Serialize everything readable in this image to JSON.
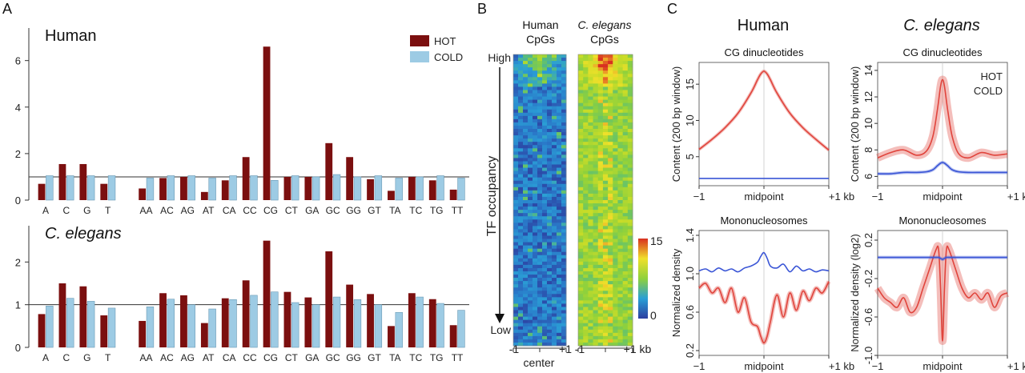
{
  "panel_labels": {
    "a": "A",
    "b": "B",
    "c": "C"
  },
  "colors": {
    "hot": "#7b0f0f",
    "cold": "#9dcbe4",
    "red_line": "#e0443c",
    "blue_line": "#3a55d6"
  },
  "chart_data": [
    {
      "id": "A-human",
      "type": "bar",
      "title": "Human",
      "categories": [
        "A",
        "C",
        "G",
        "T",
        "AA",
        "AC",
        "AG",
        "AT",
        "CA",
        "CC",
        "CG",
        "CT",
        "GA",
        "GC",
        "GG",
        "GT",
        "TA",
        "TC",
        "TG",
        "TT"
      ],
      "series": [
        {
          "name": "HOT",
          "values": [
            0.7,
            1.55,
            1.55,
            0.7,
            0.5,
            0.95,
            1.0,
            0.35,
            0.85,
            1.85,
            6.6,
            1.0,
            1.0,
            2.45,
            1.85,
            0.9,
            0.4,
            1.0,
            0.85,
            0.45
          ]
        },
        {
          "name": "COLD",
          "values": [
            1.05,
            1.05,
            1.05,
            1.05,
            0.95,
            1.05,
            1.05,
            0.95,
            1.05,
            1.05,
            0.85,
            1.05,
            1.0,
            1.1,
            1.0,
            1.05,
            0.95,
            1.0,
            1.05,
            0.95
          ]
        }
      ],
      "legend": [
        "HOT",
        "COLD"
      ],
      "yticks": [
        "0",
        "2",
        "4",
        "6"
      ],
      "ylim": [
        0,
        7.4
      ],
      "reference_line": 1
    },
    {
      "id": "A-celegans",
      "type": "bar",
      "title": "C. elegans",
      "categories": [
        "A",
        "C",
        "G",
        "T",
        "AA",
        "AC",
        "AG",
        "AT",
        "CA",
        "CC",
        "CG",
        "CT",
        "GA",
        "GC",
        "GG",
        "GT",
        "TA",
        "TC",
        "TG",
        "TT"
      ],
      "series": [
        {
          "name": "HOT",
          "values": [
            0.78,
            1.5,
            1.43,
            0.75,
            0.62,
            1.27,
            1.22,
            0.57,
            1.15,
            1.57,
            2.5,
            1.3,
            1.17,
            2.25,
            1.47,
            1.25,
            0.5,
            1.27,
            1.13,
            0.52
          ]
        },
        {
          "name": "COLD",
          "values": [
            0.97,
            1.15,
            1.08,
            0.92,
            0.95,
            1.13,
            1.0,
            0.9,
            1.12,
            1.22,
            1.3,
            1.05,
            1.0,
            1.18,
            1.12,
            1.0,
            0.82,
            1.18,
            1.03,
            0.87
          ]
        }
      ],
      "yticks": [
        "0",
        "1",
        "2"
      ],
      "ylim": [
        0,
        2.85
      ],
      "reference_line": 1
    },
    {
      "id": "B-heatmap",
      "type": "heatmap",
      "columns": [
        "Human CpGs",
        "C. elegans CpGs"
      ],
      "col_titles": [
        [
          "Human",
          "CpGs"
        ],
        [
          "C. elegans",
          "CpGs"
        ]
      ],
      "ylabel": "TF occupancy",
      "y_high": "High",
      "y_low": "Low",
      "x_left": "-1",
      "x_mid": "center",
      "x_right": "+1",
      "x_right2": "+1 kb",
      "colorbar_range": [
        0,
        15
      ],
      "colorbar_ticks": [
        "15",
        "0"
      ]
    },
    {
      "id": "C-human-cg",
      "type": "line",
      "column_title": "Human",
      "title": "CG dinucleotides",
      "ylabel": "Content (200 bp window)",
      "x": [
        -1,
        -0.8,
        -0.6,
        -0.4,
        -0.2,
        -0.1,
        -0.05,
        0,
        0.05,
        0.1,
        0.2,
        0.4,
        0.6,
        0.8,
        1
      ],
      "series": [
        {
          "name": "HOT",
          "values": [
            6.0,
            7.4,
            9.0,
            11.0,
            13.8,
            15.6,
            16.4,
            16.8,
            16.4,
            15.6,
            13.8,
            11.0,
            9.0,
            7.4,
            5.9
          ]
        },
        {
          "name": "COLD",
          "values": [
            2.0,
            2.0,
            2.0,
            2.0,
            2.0,
            2.0,
            2.0,
            2.0,
            2.0,
            2.0,
            2.0,
            2.0,
            2.0,
            2.0,
            2.0
          ]
        }
      ],
      "ylim": [
        1,
        18
      ],
      "yticks": [
        5,
        10,
        15
      ],
      "xticks": [
        "−1",
        "midpoint",
        "+1 kb"
      ]
    },
    {
      "id": "C-celegans-cg",
      "type": "line",
      "column_title": "C. elegans",
      "title": "CG dinucleotides",
      "ylabel": "Content (200 bp window)",
      "legend": [
        "HOT",
        "COLD"
      ],
      "x": [
        -1,
        -0.8,
        -0.6,
        -0.4,
        -0.25,
        -0.15,
        -0.08,
        -0.03,
        0,
        0.03,
        0.08,
        0.15,
        0.25,
        0.4,
        0.6,
        0.8,
        1
      ],
      "series": [
        {
          "name": "HOT",
          "values": [
            7.4,
            7.8,
            8.0,
            7.6,
            7.9,
            9.0,
            11.0,
            12.8,
            13.3,
            12.8,
            11.0,
            9.0,
            7.7,
            7.4,
            7.8,
            7.6,
            7.7
          ]
        },
        {
          "name": "COLD",
          "values": [
            6.2,
            6.2,
            6.3,
            6.3,
            6.35,
            6.5,
            6.8,
            7.0,
            7.05,
            7.0,
            6.8,
            6.5,
            6.35,
            6.3,
            6.3,
            6.3,
            6.3
          ]
        }
      ],
      "ylim": [
        5.3,
        14.6
      ],
      "yticks": [
        6,
        8,
        10,
        12,
        14
      ],
      "xticks": [
        "−1",
        "midpoint",
        "+1 kb"
      ]
    },
    {
      "id": "C-human-mono",
      "type": "line",
      "title": "Mononucleosomes",
      "ylabel": "Normalized density",
      "x": [
        -1,
        -0.9,
        -0.8,
        -0.7,
        -0.6,
        -0.5,
        -0.4,
        -0.3,
        -0.2,
        -0.1,
        -0.05,
        0,
        0.05,
        0.1,
        0.2,
        0.3,
        0.4,
        0.5,
        0.6,
        0.7,
        0.8,
        0.9,
        1
      ],
      "series": [
        {
          "name": "HOT",
          "values": [
            0.85,
            0.9,
            0.8,
            0.85,
            0.7,
            0.85,
            0.6,
            0.75,
            0.5,
            0.45,
            0.35,
            0.28,
            0.35,
            0.5,
            0.78,
            0.55,
            0.8,
            0.62,
            0.82,
            0.72,
            0.85,
            0.8,
            0.92
          ]
        },
        {
          "name": "COLD",
          "values": [
            1.03,
            1.05,
            1.02,
            1.06,
            1.03,
            1.05,
            1.02,
            1.06,
            1.08,
            1.12,
            1.18,
            1.22,
            1.16,
            1.08,
            1.06,
            1.1,
            1.02,
            1.08,
            1.03,
            1.05,
            1.02,
            1.04,
            1.03
          ]
        }
      ],
      "ylim": [
        0.15,
        1.45
      ],
      "ytick_labels": [
        "0.2",
        "0.6",
        "1.0",
        "1.4"
      ],
      "yticks": [
        0.2,
        0.6,
        1.0,
        1.4
      ],
      "xticks": [
        "−1",
        "midpoint",
        "+1 kb"
      ]
    },
    {
      "id": "C-celegans-mono",
      "type": "line",
      "title": "Mononucleosomes",
      "ylabel": "Normalized density (log2)",
      "x": [
        -1,
        -0.9,
        -0.8,
        -0.7,
        -0.6,
        -0.5,
        -0.4,
        -0.3,
        -0.2,
        -0.1,
        -0.06,
        -0.03,
        0,
        0.03,
        0.06,
        0.1,
        0.2,
        0.3,
        0.4,
        0.5,
        0.6,
        0.7,
        0.8,
        0.9,
        1
      ],
      "series": [
        {
          "name": "HOT",
          "values": [
            -0.3,
            -0.4,
            -0.45,
            -0.5,
            -0.4,
            -0.55,
            -0.5,
            -0.3,
            -0.1,
            0.1,
            0.1,
            -0.3,
            -0.85,
            -0.3,
            0.1,
            0.1,
            -0.1,
            -0.3,
            -0.4,
            -0.35,
            -0.42,
            -0.35,
            -0.5,
            -0.38,
            -0.35
          ]
        },
        {
          "name": "COLD",
          "values": [
            0.02,
            0.02,
            0.02,
            0.02,
            0.02,
            0.02,
            0.02,
            0.02,
            0.02,
            0.02,
            0.02,
            0.01,
            0.0,
            0.01,
            0.02,
            0.02,
            0.02,
            0.02,
            0.02,
            0.02,
            0.02,
            0.02,
            0.02,
            0.02,
            0.02
          ]
        }
      ],
      "ylim": [
        -1.0,
        0.3
      ],
      "ytick_labels": [
        "0.2",
        "-0.2",
        "-0.6",
        "-1.0"
      ],
      "yticks": [
        0.2,
        -0.2,
        -0.6,
        -1.0
      ],
      "xticks": [
        "−1",
        "midpoint",
        "+1 kb"
      ]
    }
  ]
}
